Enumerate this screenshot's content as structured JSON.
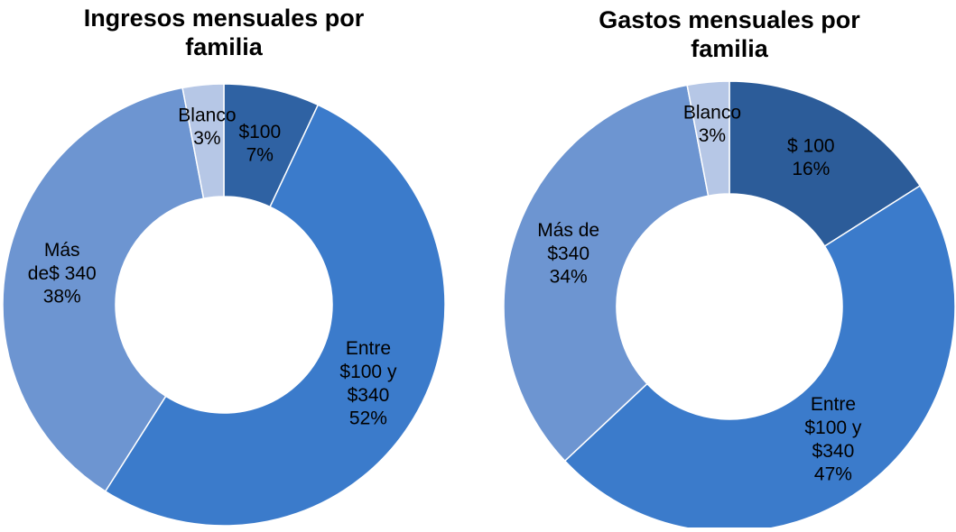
{
  "chart_data": [
    {
      "type": "donut",
      "title": "Ingresos mensuales por\nfamilia",
      "categories": [
        "$100",
        "Entre\n$100 y\n$340",
        "Más\nde$ 340",
        "Blanco"
      ],
      "values": [
        7,
        52,
        38,
        3
      ],
      "value_labels": [
        "7%",
        "52%",
        "38%",
        "3%"
      ],
      "colors": [
        "#2f62a3",
        "#3b7bcb",
        "#6d95d1",
        "#b6c7e6"
      ]
    },
    {
      "type": "donut",
      "title": "Gastos mensuales por\nfamilia",
      "categories": [
        "$ 100",
        "Entre\n$100 y\n$340",
        "Más de\n$340",
        "Blanco"
      ],
      "values": [
        16,
        47,
        34,
        3
      ],
      "value_labels": [
        "16%",
        "47%",
        "34%",
        "3%"
      ],
      "colors": [
        "#2c5c99",
        "#3b7bcb",
        "#6d95d1",
        "#b6c7e6"
      ]
    }
  ]
}
